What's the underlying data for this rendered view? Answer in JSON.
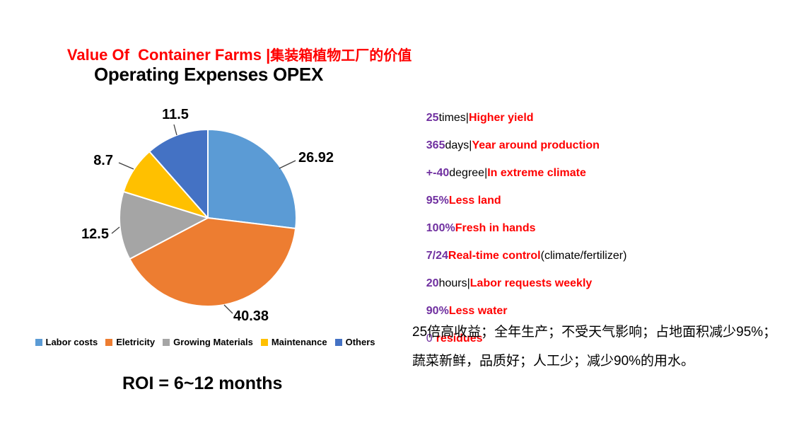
{
  "page_title": {
    "en": "Value Of  Container Farms |",
    "zh": "集装箱植物工厂的价值"
  },
  "chart": {
    "title": "Operating Expenses OPEX",
    "roi_label": "ROI = 6~12 months"
  },
  "chart_data": {
    "type": "pie",
    "title": "Operating Expenses OPEX",
    "categories": [
      "Labor costs",
      "Eletricity",
      "Growing Materials",
      "Maintenance",
      "Others"
    ],
    "values": [
      26.92,
      40.38,
      12.5,
      8.7,
      11.5
    ],
    "colors": [
      "#5B9BD5",
      "#ED7D31",
      "#A5A5A5",
      "#FFC000",
      "#4472C4"
    ],
    "start_angle_deg": 0,
    "direction": "clockwise",
    "legend_position": "bottom",
    "data_labels": "outside-with-leader-lines"
  },
  "benefits": [
    {
      "num": "25",
      "mid": "times|",
      "main": "Higher yield"
    },
    {
      "num": "365",
      "mid": "days|",
      "main": "Year around production"
    },
    {
      "num": "+-40",
      "mid": "degree|",
      "main": "In extreme climate"
    },
    {
      "num": "95%",
      "main": "Less land"
    },
    {
      "num": "100%",
      "main": "Fresh in hands"
    },
    {
      "num": "7/24",
      "main": "Real-time control",
      "extra": "(climate/fertilizer)"
    },
    {
      "num": "20",
      "mid": "hours|",
      "main": "Labor requests weekly"
    },
    {
      "num": "90%",
      "main": "Less water"
    },
    {
      "num_light": "0",
      "main": "residues"
    }
  ],
  "summary_zh": "25倍高收益；全年生产；不受天气影响；占地面积减少95%；\n蔬菜新鲜，品质好；人工少；减少90%的用水。",
  "colors": {
    "accent_red": "#FF0000",
    "accent_purple": "#7030A0"
  }
}
